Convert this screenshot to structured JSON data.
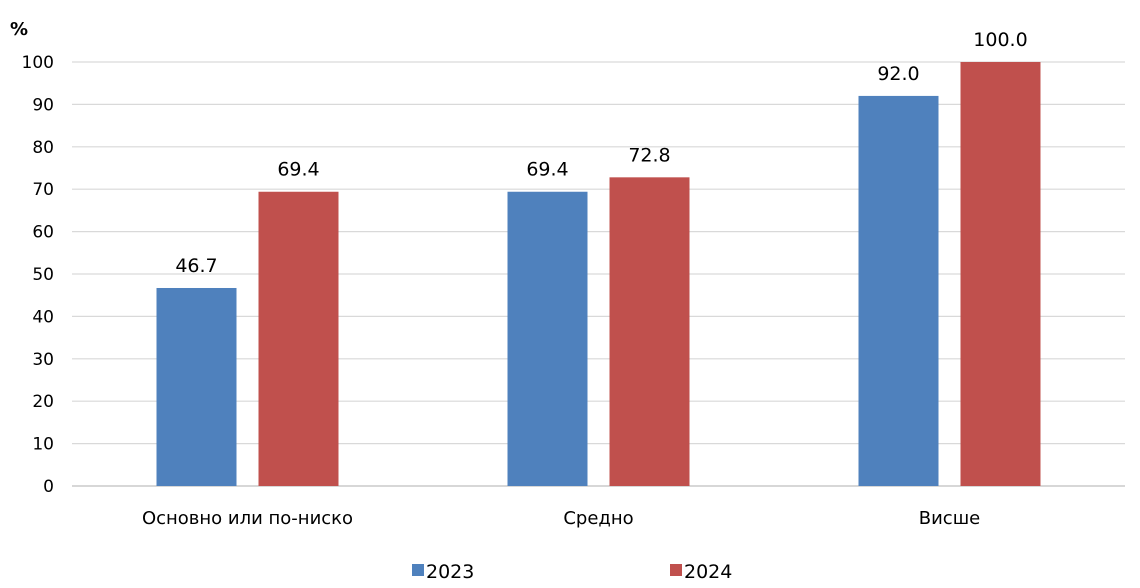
{
  "chart_data": {
    "type": "bar",
    "y_unit": "%",
    "categories": [
      "Основно или по-ниско",
      "Средно",
      "Висше"
    ],
    "series": [
      {
        "name": "2023",
        "color": "#4f81bd",
        "values": [
          46.7,
          69.4,
          92.0
        ],
        "labels": [
          "46.7",
          "69.4",
          "92.0"
        ]
      },
      {
        "name": "2024",
        "color": "#c0504d",
        "values": [
          69.4,
          72.8,
          100.0
        ],
        "labels": [
          "69.4",
          "72.8",
          "100.0"
        ]
      }
    ],
    "ylim": [
      0,
      100
    ],
    "yticks": [
      0,
      10,
      20,
      30,
      40,
      50,
      60,
      70,
      80,
      90,
      100
    ],
    "grid": true,
    "legend_position": "bottom"
  }
}
